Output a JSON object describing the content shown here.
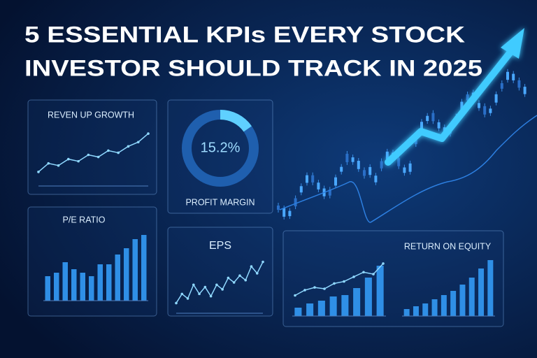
{
  "title": [
    "5 ESSENTIAL KPIs EVERY STOCK",
    "INVESTOR SHOULD TRACK IN 2025"
  ],
  "chart_data": [
    {
      "type": "line",
      "title": "REVEN UP GROWTH",
      "color": "#8fd8ff",
      "values": [
        2,
        4,
        3.5,
        5,
        4.5,
        6,
        5.5,
        7,
        6.5,
        8,
        9,
        11
      ],
      "ylim": [
        0,
        12
      ]
    },
    {
      "type": "donut",
      "title": "PROFIT MARGIN",
      "color": "#5fd0ff",
      "values": [
        15.2
      ],
      "value_labels": [
        "15.2%"
      ]
    },
    {
      "type": "bar",
      "title": "P/E RATIO",
      "color": "#2f8fe6",
      "values": [
        35,
        40,
        55,
        45,
        40,
        35,
        52,
        52,
        66,
        75,
        88,
        94
      ],
      "ylim": [
        0,
        100
      ]
    },
    {
      "type": "line",
      "title": "EPS",
      "color": "#8fd8ff",
      "values": [
        1,
        3,
        2,
        5,
        3,
        4.5,
        2.5,
        5,
        4,
        6.5,
        5.5,
        7,
        6,
        9,
        7.5,
        10
      ],
      "ylim": [
        0,
        11
      ]
    },
    {
      "type": "combo",
      "title": "RETURN ON EQUITY",
      "color": "#2f8fe6",
      "line_color": "#8fd8ff",
      "values": [
        12,
        18,
        22,
        28,
        30,
        40,
        55,
        72
      ],
      "line_values": [
        10,
        18,
        22,
        20,
        28,
        31,
        38,
        45,
        42,
        58
      ],
      "ylim": [
        0,
        80
      ]
    },
    {
      "type": "bar",
      "color": "#2f8fe6",
      "values": [
        10,
        14,
        18,
        24,
        30,
        36,
        45,
        55,
        68,
        80
      ],
      "ylim": [
        0,
        80
      ]
    }
  ]
}
